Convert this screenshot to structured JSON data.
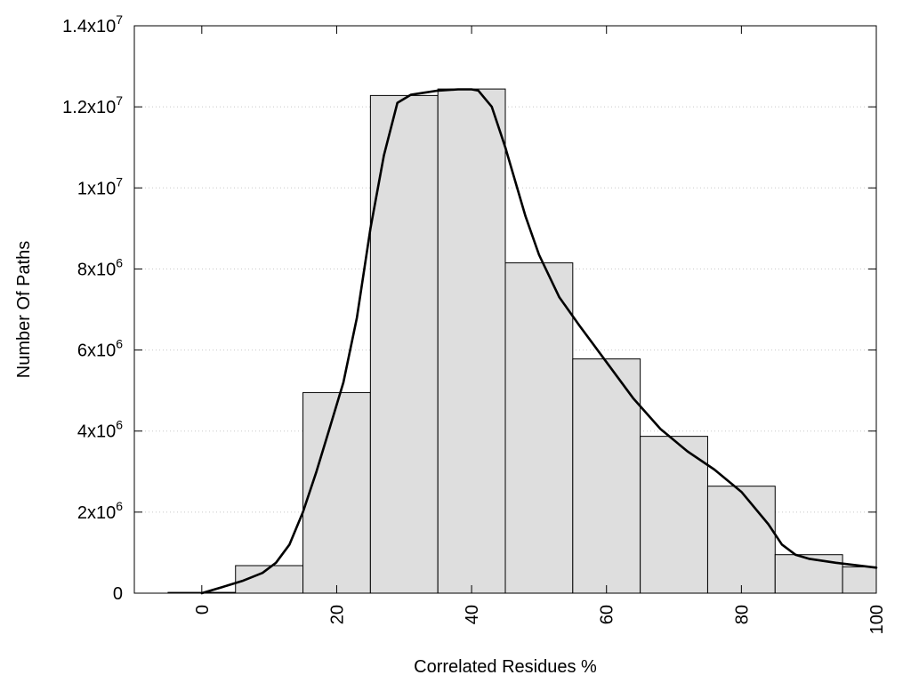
{
  "chart_data": {
    "type": "bar",
    "xlabel": "Correlated Residues %",
    "ylabel": "Number Of Paths",
    "xlim": [
      -10,
      100
    ],
    "ylim": [
      0,
      14000000
    ],
    "x_ticks": [
      {
        "value": 0,
        "label": "0"
      },
      {
        "value": 20,
        "label": "20"
      },
      {
        "value": 40,
        "label": "40"
      },
      {
        "value": 60,
        "label": "60"
      },
      {
        "value": 80,
        "label": "80"
      },
      {
        "value": 100,
        "label": "100"
      }
    ],
    "y_ticks": [
      {
        "value": 0,
        "base": "0",
        "exp": ""
      },
      {
        "value": 2000000,
        "base": "2x10",
        "exp": "6"
      },
      {
        "value": 4000000,
        "base": "4x10",
        "exp": "6"
      },
      {
        "value": 6000000,
        "base": "6x10",
        "exp": "6"
      },
      {
        "value": 8000000,
        "base": "8x10",
        "exp": "6"
      },
      {
        "value": 10000000,
        "base": "1x10",
        "exp": "7"
      },
      {
        "value": 12000000,
        "base": "1.2x10",
        "exp": "7"
      },
      {
        "value": 14000000,
        "base": "1.4x10",
        "exp": "7"
      }
    ],
    "grid": "horizontal dotted",
    "bin_width": 10,
    "bins": [
      {
        "center": 0,
        "value": 20000
      },
      {
        "center": 10,
        "value": 680000
      },
      {
        "center": 20,
        "value": 4950000
      },
      {
        "center": 30,
        "value": 12280000
      },
      {
        "center": 40,
        "value": 12440000
      },
      {
        "center": 50,
        "value": 8150000
      },
      {
        "center": 60,
        "value": 5780000
      },
      {
        "center": 70,
        "value": 3870000
      },
      {
        "center": 80,
        "value": 2640000
      },
      {
        "center": 90,
        "value": 950000
      },
      {
        "center": 100,
        "value": 650000
      }
    ],
    "curve": {
      "x": [
        0,
        3,
        6,
        9,
        11,
        13,
        15,
        17,
        19,
        21,
        23,
        25,
        27,
        29,
        31,
        33,
        35,
        38,
        40,
        41,
        43,
        45,
        48,
        50,
        53,
        56,
        60,
        64,
        68,
        72,
        76,
        80,
        84,
        86,
        88,
        90,
        94,
        100
      ],
      "y": [
        0,
        150000,
        300000,
        500000,
        750000,
        1200000,
        2000000,
        3000000,
        4100000,
        5200000,
        6800000,
        9000000,
        10800000,
        12100000,
        12300000,
        12350000,
        12400000,
        12430000,
        12430000,
        12400000,
        12000000,
        11000000,
        9300000,
        8350000,
        7300000,
        6600000,
        5700000,
        4800000,
        4050000,
        3500000,
        3050000,
        2500000,
        1700000,
        1200000,
        950000,
        850000,
        750000,
        630000
      ]
    }
  }
}
